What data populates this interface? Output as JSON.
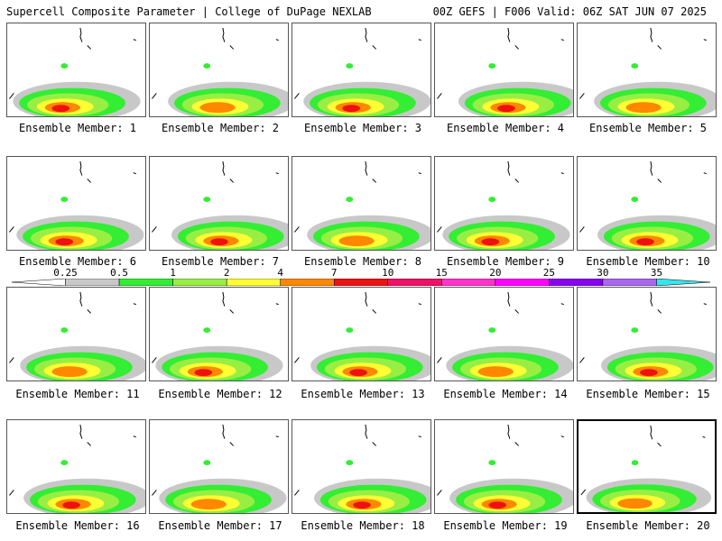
{
  "header": {
    "left": "Supercell Composite Parameter | College of DuPage NEXLAB",
    "right": "00Z GEFS | F006 Valid: 06Z SAT JUN 07 2025"
  },
  "colorbar": {
    "labels": [
      "0.25",
      "0.5",
      "1",
      "2",
      "4",
      "7",
      "10",
      "15",
      "20",
      "25",
      "30",
      "35"
    ],
    "colors": [
      "#c8c8c8",
      "#33ee33",
      "#99ee44",
      "#ffff33",
      "#ff8800",
      "#ee1111",
      "#ee1166",
      "#ff33cc",
      "#ff00ff",
      "#8800ee",
      "#aa66ee",
      "#33e6f0"
    ]
  },
  "panels": [
    {
      "caption": "Ensemble Member: 1"
    },
    {
      "caption": "Ensemble Member: 2"
    },
    {
      "caption": "Ensemble Member: 3"
    },
    {
      "caption": "Ensemble Member: 4"
    },
    {
      "caption": "Ensemble Member: 5"
    },
    {
      "caption": "Ensemble Member: 6"
    },
    {
      "caption": "Ensemble Member: 7"
    },
    {
      "caption": "Ensemble Member: 8"
    },
    {
      "caption": "Ensemble Member: 9"
    },
    {
      "caption": "Ensemble Member: 10"
    },
    {
      "caption": "Ensemble Member: 11"
    },
    {
      "caption": "Ensemble Member: 12"
    },
    {
      "caption": "Ensemble Member: 13"
    },
    {
      "caption": "Ensemble Member: 14"
    },
    {
      "caption": "Ensemble Member: 15"
    },
    {
      "caption": "Ensemble Member: 16"
    },
    {
      "caption": "Ensemble Member: 17"
    },
    {
      "caption": "Ensemble Member: 18"
    },
    {
      "caption": "Ensemble Member: 19"
    },
    {
      "caption": "Ensemble Member: 20",
      "selected": true
    }
  ]
}
